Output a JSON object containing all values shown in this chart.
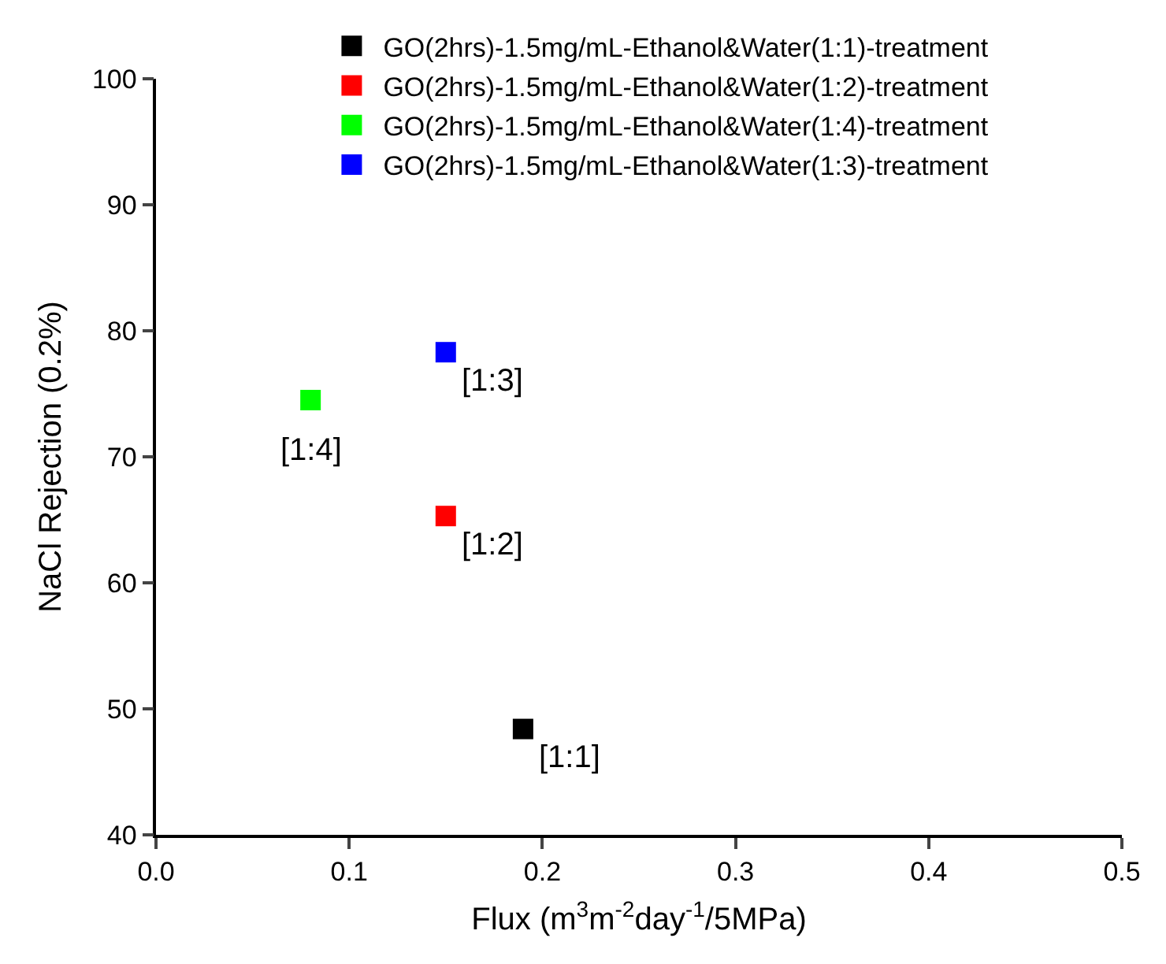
{
  "chart_data": {
    "type": "scatter",
    "xlabel": "Flux (m$^{3}$m$^{-2}$day$^{-1}$/5MPa)",
    "ylabel": "NaCl Rejection (0.2%)",
    "series": [
      {
        "name": "GO(2hrs)-1.5mg/mL-Ethanol&Water(1:1)-treatment",
        "color": "#000000",
        "x": [
          0.19
        ],
        "values": [
          48.4
        ]
      },
      {
        "name": "GO(2hrs)-1.5mg/mL-Ethanol&Water(1:2)-treatment",
        "color": "#ff0000",
        "x": [
          0.15
        ],
        "values": [
          65.3
        ]
      },
      {
        "name": "GO(2hrs)-1.5mg/mL-Ethanol&Water(1:4)-treatment",
        "color": "#00ff00",
        "x": [
          0.08
        ],
        "values": [
          74.5
        ]
      },
      {
        "name": "GO(2hrs)-1.5mg/mL-Ethanol&Water(1:3)-treatment",
        "color": "#0000ff",
        "x": [
          0.15
        ],
        "values": [
          78.3
        ]
      }
    ],
    "annotations": [
      {
        "text": "[1:1]",
        "x": 0.19,
        "y": 48.4
      },
      {
        "text": "[1:2]",
        "x": 0.15,
        "y": 65.3
      },
      {
        "text": "[1:4]",
        "x": 0.08,
        "y": 74.5
      },
      {
        "text": "[1:3]",
        "x": 0.15,
        "y": 78.3
      }
    ],
    "xlim": [
      0,
      0.5
    ],
    "xticks": [
      {
        "value": 0,
        "label": "0.0"
      },
      0.1,
      0.2,
      0.3,
      0.4,
      0.5
    ],
    "ylim": [
      40,
      100
    ],
    "yticks": [
      40,
      50,
      60,
      70,
      80,
      90,
      100
    ],
    "grid": false,
    "legend": "top right",
    "marker": "square"
  }
}
